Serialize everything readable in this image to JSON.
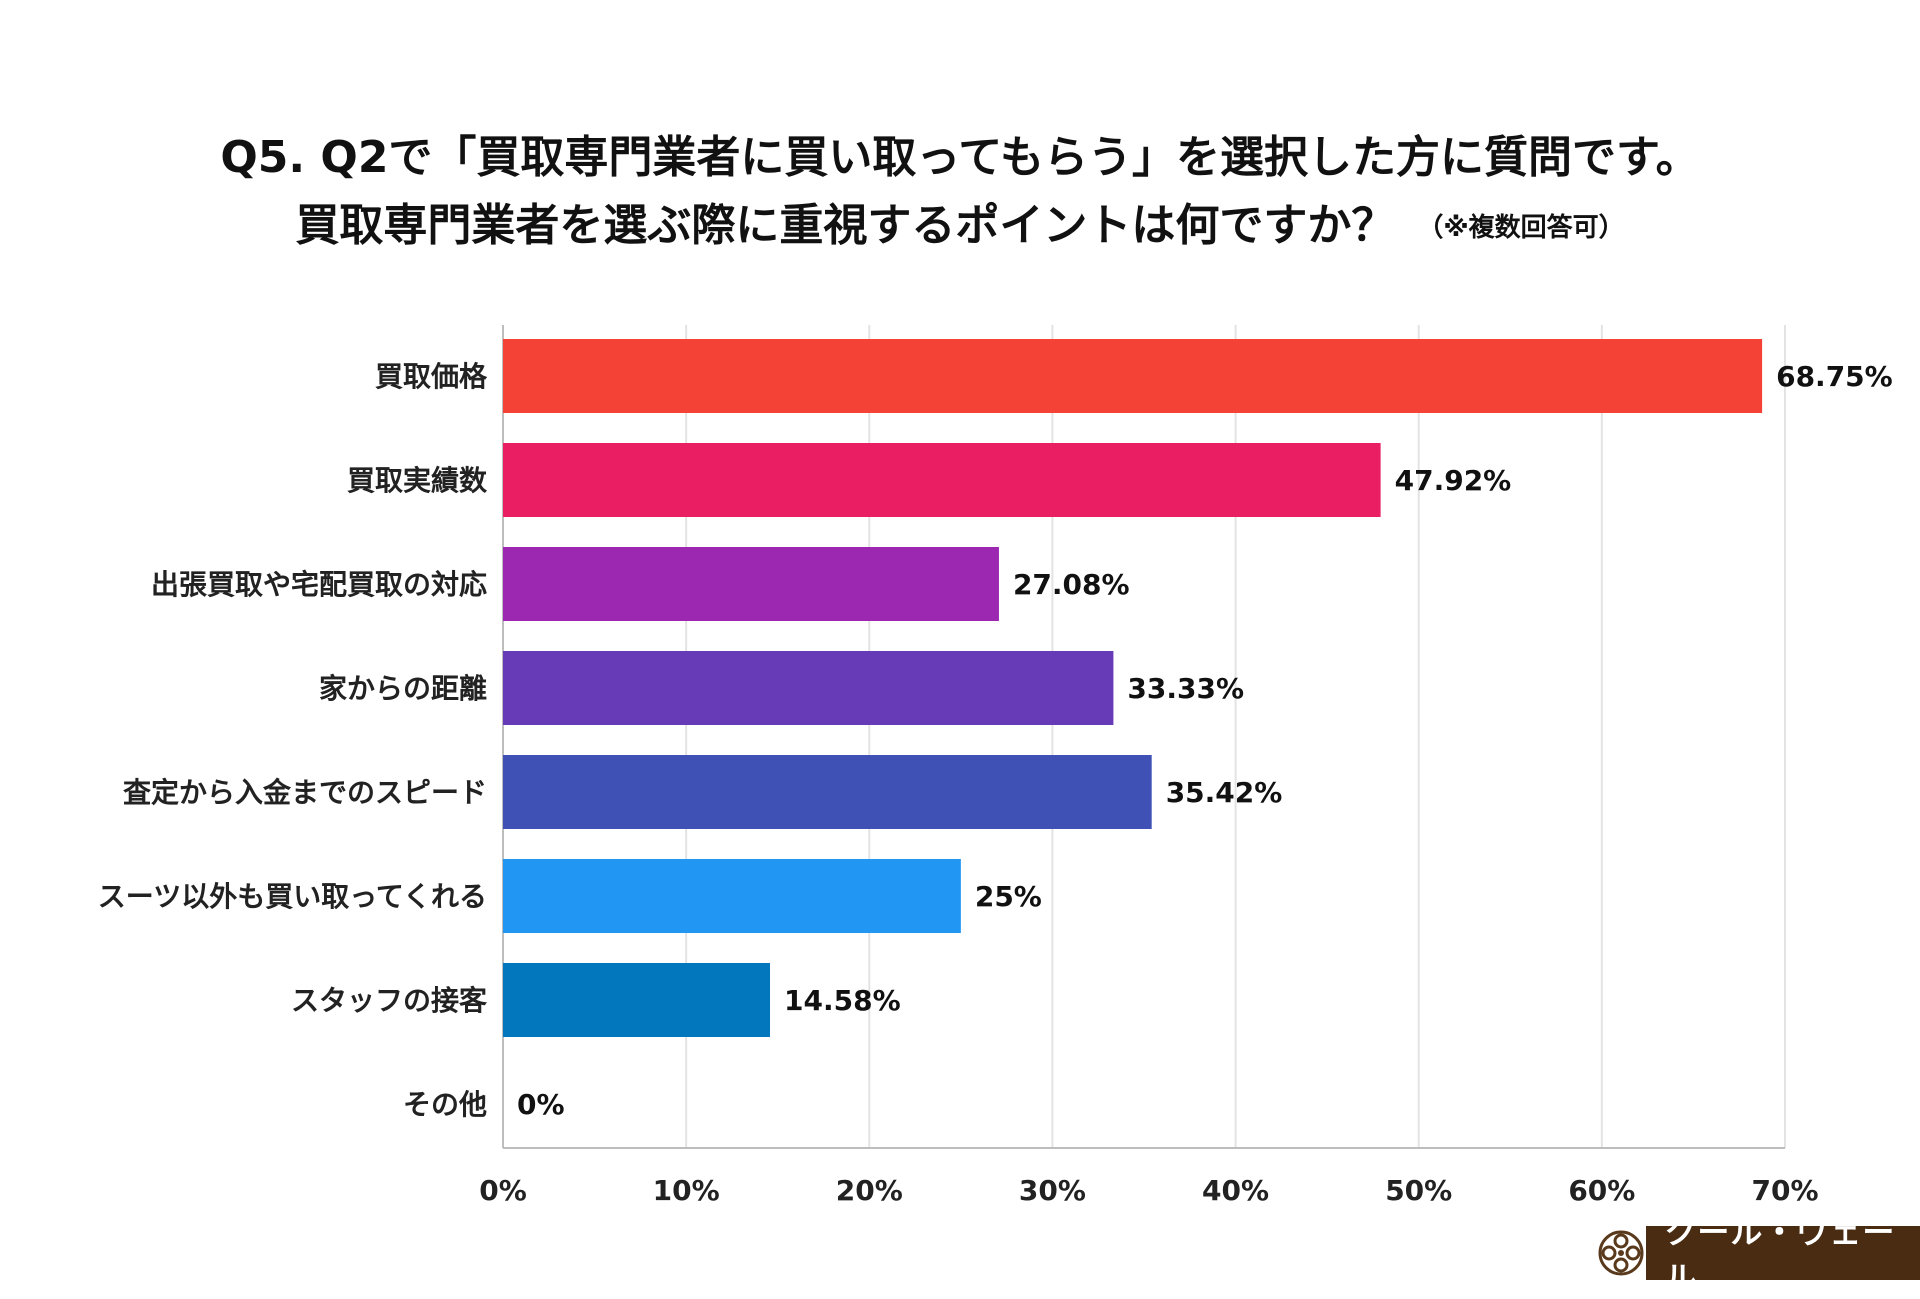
{
  "title": {
    "line1": "Q5. Q2で「買取専門業者に買い取ってもらう」を選択した方に質問です。",
    "line2": "買取専門業者を選ぶ際に重視するポイントは何ですか？",
    "note": "（※複数回答可）"
  },
  "logo": {
    "text": "クール・ヴェール"
  },
  "chart_data": {
    "type": "bar",
    "orientation": "horizontal",
    "title": "Q5. Q2で「買取専門業者に買い取ってもらう」を選択した方に質問です。買取専門業者を選ぶ際に重視するポイントは何ですか？（※複数回答可）",
    "categories": [
      "買取価格",
      "買取実績数",
      "出張買取や宅配買取の対応",
      "家からの距離",
      "査定から入金までのスピード",
      "スーツ以外も買い取ってくれる",
      "スタッフの接客",
      "その他"
    ],
    "values": [
      68.75,
      47.92,
      27.08,
      33.33,
      35.42,
      25,
      14.58,
      0
    ],
    "value_labels": [
      "68.75%",
      "47.92%",
      "27.08%",
      "33.33%",
      "35.42%",
      "25%",
      "14.58%",
      "0%"
    ],
    "colors": [
      "#f44236",
      "#e91e63",
      "#9c27b0",
      "#673ab7",
      "#3f51b5",
      "#2196f3",
      "#0277bd",
      "#0277bd"
    ],
    "xlim": [
      0,
      70
    ],
    "xticks": [
      0,
      10,
      20,
      30,
      40,
      50,
      60,
      70
    ],
    "xtick_labels": [
      "0%",
      "10%",
      "20%",
      "30%",
      "40%",
      "50%",
      "60%",
      "70%"
    ],
    "grid": true,
    "xlabel": "",
    "ylabel": ""
  }
}
